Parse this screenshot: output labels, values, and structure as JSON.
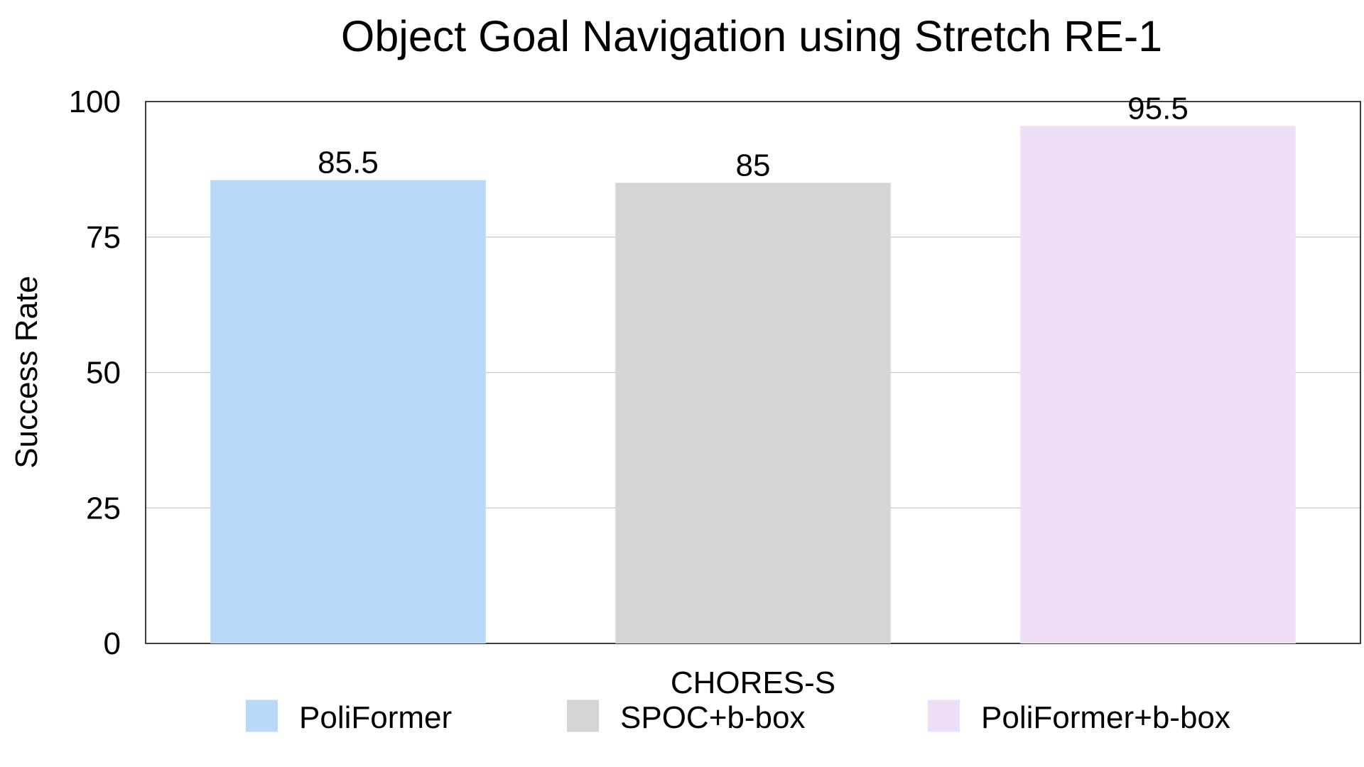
{
  "chart_data": {
    "type": "bar",
    "title": "Object Goal Navigation using Stretch RE-1",
    "xlabel": "CHORES-S",
    "ylabel": "Success Rate",
    "categories": [
      "CHORES-S"
    ],
    "ylim": [
      0,
      100
    ],
    "yticks": [
      {
        "value": 0,
        "label": "0"
      },
      {
        "value": 25,
        "label": "25"
      },
      {
        "value": 50,
        "label": "50"
      },
      {
        "value": 75,
        "label": "75"
      },
      {
        "value": 100,
        "label": "100"
      }
    ],
    "grid": true,
    "legend_position": "bottom",
    "series": [
      {
        "name": "PoliFormer",
        "values": [
          85.5
        ],
        "label": "85.5",
        "color": "#BAD8F8"
      },
      {
        "name": "SPOC+b-box",
        "values": [
          85
        ],
        "label": "85",
        "color": "#D5D5D5"
      },
      {
        "name": "PoliFormer+b-box",
        "values": [
          95.5
        ],
        "label": "95.5",
        "color": "#EEDFF7"
      }
    ]
  }
}
